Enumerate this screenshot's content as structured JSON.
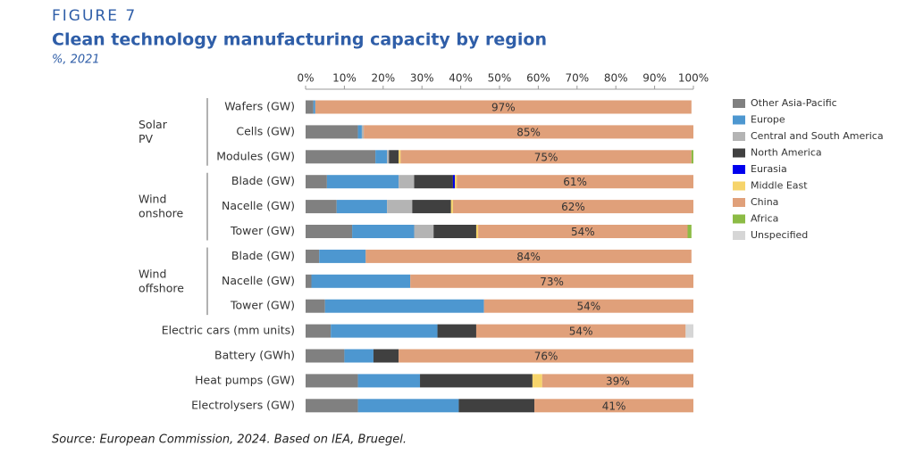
{
  "header": {
    "figure": "FIGURE 7",
    "title": "Clean technology manufacturing capacity by region",
    "subtitle": "%, 2021"
  },
  "chart_data": {
    "type": "stacked-bar-horizontal",
    "categories": [
      "Wafers (GW)",
      "Cells (GW)",
      "Modules (GW)",
      "Blade (GW)",
      "Nacelle (GW)",
      "Tower (GW)",
      "Blade (GW)",
      "Nacelle (GW)",
      "Tower (GW)",
      "Electric cars (mm units)",
      "Battery (GWh)",
      "Heat pumps (GW)",
      "Electrolysers (GW)"
    ],
    "groups": [
      {
        "name": "Solar PV",
        "count": 3
      },
      {
        "name": "Wind onshore",
        "count": 3
      },
      {
        "name": "Wind offshore",
        "count": 3
      }
    ],
    "series": [
      {
        "name": "Other Asia-Pacific",
        "color": "#808080",
        "values": [
          2,
          13.5,
          18,
          5.5,
          8,
          12,
          3.5,
          1.5,
          5,
          6.5,
          10,
          13.5,
          13.5
        ]
      },
      {
        "name": "Europe",
        "color": "#4d97d0",
        "values": [
          0.5,
          1,
          3,
          18.5,
          13,
          16,
          12,
          25.5,
          41,
          27.5,
          7.5,
          16,
          26
        ]
      },
      {
        "name": "Central and South America",
        "color": "#b4b4b4",
        "values": [
          0,
          0.5,
          0.5,
          4,
          6.5,
          5,
          0,
          0,
          0,
          0,
          0,
          0,
          0
        ]
      },
      {
        "name": "North America",
        "color": "#404040",
        "values": [
          0,
          0,
          2.5,
          10,
          10,
          11,
          0,
          0,
          0,
          10,
          6.5,
          29,
          19.5
        ]
      },
      {
        "name": "Eurasia",
        "color": "#0000ee",
        "values": [
          0,
          0,
          0,
          0.5,
          0,
          0,
          0,
          0,
          0,
          0,
          0,
          0,
          0
        ]
      },
      {
        "name": "Middle East",
        "color": "#f6d46b",
        "values": [
          0,
          0,
          0.5,
          0.5,
          0.5,
          0.5,
          0,
          0,
          0,
          0,
          0,
          2.5,
          0
        ]
      },
      {
        "name": "China",
        "color": "#e0a07a",
        "values": [
          97,
          85,
          75,
          61,
          62,
          54,
          84,
          73,
          54,
          54,
          76,
          39,
          41
        ],
        "value_labels": [
          "97%",
          "85%",
          "75%",
          "61%",
          "62%",
          "54%",
          "84%",
          "73%",
          "54%",
          "54%",
          "76%",
          "39%",
          "41%"
        ]
      },
      {
        "name": "Africa",
        "color": "#8cbb45",
        "values": [
          0,
          0,
          0.5,
          0,
          0,
          1,
          0,
          0,
          0,
          0,
          0,
          0,
          0
        ]
      },
      {
        "name": "Unspecified",
        "color": "#d6d6d6",
        "values": [
          0,
          0,
          0,
          0,
          0,
          0,
          0,
          0,
          0,
          2,
          0,
          0,
          0
        ]
      }
    ],
    "xlim": [
      0,
      100
    ],
    "xticks": [
      {
        "value": 0,
        "label": "0%"
      },
      {
        "value": 10,
        "label": "10%"
      },
      {
        "value": 20,
        "label": "20%"
      },
      {
        "value": 30,
        "label": "30%"
      },
      {
        "value": 40,
        "label": "40%"
      },
      {
        "value": 50,
        "label": "50%"
      },
      {
        "value": 60,
        "label": "60%"
      },
      {
        "value": 70,
        "label": "70%"
      },
      {
        "value": 80,
        "label": "80%"
      },
      {
        "value": 90,
        "label": "90%"
      },
      {
        "value": 100,
        "label": "100%"
      }
    ],
    "legend": "right"
  },
  "footer": {
    "source": "Source: European Commission, 2024. Based on IEA, Bruegel."
  }
}
